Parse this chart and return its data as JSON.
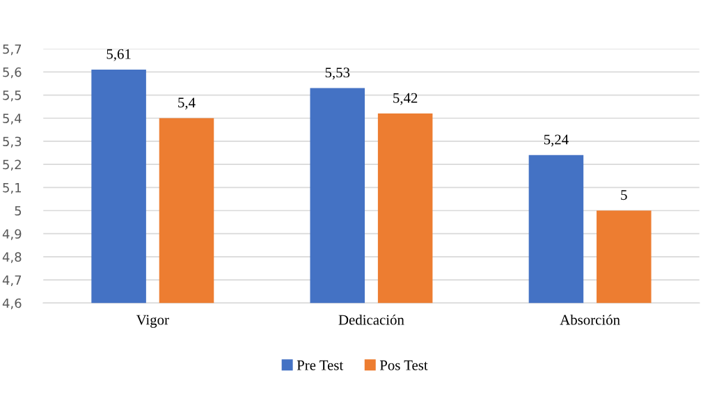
{
  "chart_data": {
    "type": "bar",
    "categories": [
      "Vigor",
      "Dedicación",
      "Absorción"
    ],
    "series": [
      {
        "name": "Pre Test",
        "color": "#4472c4",
        "values": [
          5.61,
          5.53,
          5.24
        ],
        "value_labels": [
          "5,61",
          "5,53",
          "5,24"
        ]
      },
      {
        "name": "Pos Test",
        "color": "#ed7d31",
        "values": [
          5.4,
          5.42,
          5
        ],
        "value_labels": [
          "5,4",
          "5,42",
          "5"
        ]
      }
    ],
    "ylim": [
      4.6,
      5.7
    ],
    "yticks": [
      {
        "value": 4.6,
        "label": "4,6"
      },
      {
        "value": 4.7,
        "label": "4,7"
      },
      {
        "value": 4.8,
        "label": "4,8"
      },
      {
        "value": 4.9,
        "label": "4,9"
      },
      5,
      {
        "value": 5.1,
        "label": "5,1"
      },
      {
        "value": 5.2,
        "label": "5,2"
      },
      {
        "value": 5.3,
        "label": "5,3"
      },
      {
        "value": 5.4,
        "label": "5,4"
      },
      {
        "value": 5.5,
        "label": "5,5"
      },
      {
        "value": 5.6,
        "label": "5,6"
      },
      {
        "value": 5.7,
        "label": "5,7"
      }
    ],
    "grid": "y",
    "legend": "bottom"
  }
}
